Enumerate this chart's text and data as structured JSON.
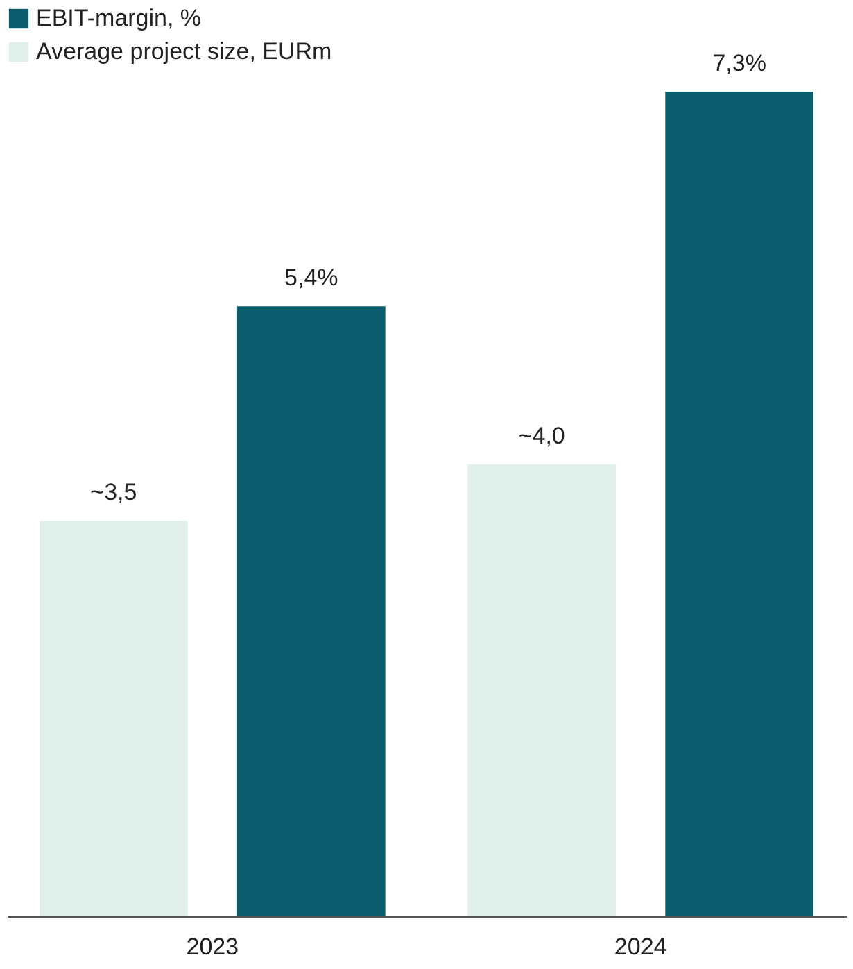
{
  "chart_data": {
    "type": "bar",
    "categories": [
      "2023",
      "2024"
    ],
    "series": [
      {
        "name": "Average project size, EURm",
        "color": "#e0efea",
        "values": [
          3.5,
          4.0
        ],
        "value_labels": [
          "~3,5",
          "~4,0"
        ]
      },
      {
        "name": "EBIT-margin, %",
        "color": "#0a5c6a",
        "values": [
          5.4,
          7.3
        ],
        "value_labels": [
          "5,4%",
          "7,3%"
        ]
      }
    ],
    "legend": "top left",
    "grid": false
  }
}
